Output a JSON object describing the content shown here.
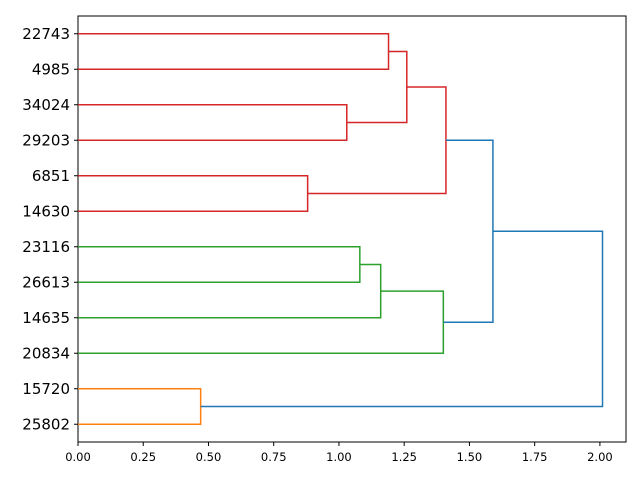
{
  "chart_data": {
    "type": "dendrogram",
    "orientation": "horizontal",
    "leaves": [
      "22743",
      "4985",
      "34024",
      "29203",
      "6851",
      "14630",
      "23116",
      "26613",
      "14635",
      "20834",
      "15720",
      "25802"
    ],
    "xlim": [
      0,
      2.1
    ],
    "x_ticks": [
      "0.00",
      "0.25",
      "0.50",
      "0.75",
      "1.00",
      "1.25",
      "1.50",
      "1.75",
      "2.00"
    ],
    "x_tick_values": [
      0,
      0.25,
      0.5,
      0.75,
      1.0,
      1.25,
      1.5,
      1.75,
      2.0
    ],
    "colors": {
      "cluster_red": "#d62728",
      "cluster_green": "#2ca02c",
      "cluster_orange": "#ff7f0e",
      "above_threshold": "#1f77b4"
    },
    "merges": [
      {
        "left": "22743",
        "right": "4985",
        "height": 1.19,
        "color": "cluster_red"
      },
      {
        "left": "34024",
        "right": "29203",
        "height": 1.03,
        "color": "cluster_red"
      },
      {
        "left": "6851",
        "right": "14630",
        "height": 0.88,
        "color": "cluster_red"
      },
      {
        "left": "m0",
        "right": "m1",
        "height": 1.26,
        "color": "cluster_red"
      },
      {
        "left": "m3",
        "right": "m2",
        "height": 1.41,
        "color": "cluster_red"
      },
      {
        "left": "23116",
        "right": "26613",
        "height": 1.08,
        "color": "cluster_green"
      },
      {
        "left": "m5",
        "right": "14635",
        "height": 1.16,
        "color": "cluster_green"
      },
      {
        "left": "m6",
        "right": "20834",
        "height": 1.4,
        "color": "cluster_green"
      },
      {
        "left": "15720",
        "right": "25802",
        "height": 0.47,
        "color": "cluster_orange"
      },
      {
        "left": "m4",
        "right": "m7",
        "height": 1.59,
        "color": "above_threshold"
      },
      {
        "left": "m9",
        "right": "m8",
        "height": 2.01,
        "color": "above_threshold"
      }
    ],
    "grid": false
  }
}
